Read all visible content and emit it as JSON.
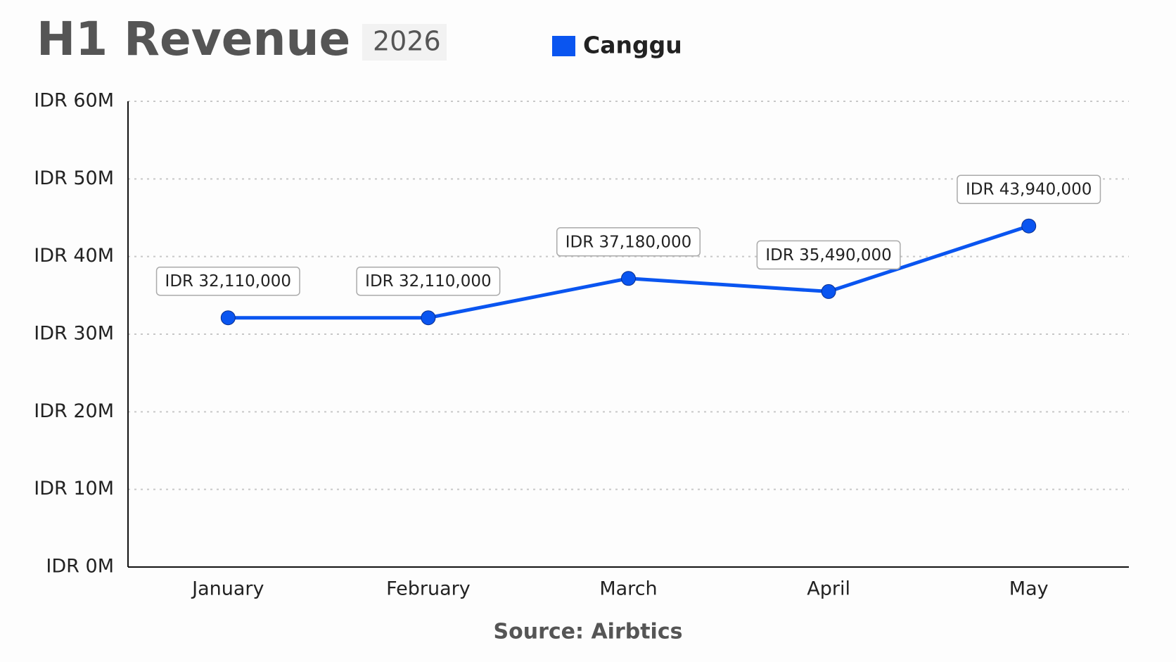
{
  "chart_data": {
    "type": "line",
    "title": "H1 Revenue",
    "subtitle": "2026",
    "source": "Source: Airbtics",
    "categories": [
      "January",
      "February",
      "March",
      "April",
      "May"
    ],
    "series": [
      {
        "name": "Canggu",
        "color": "#0a55f0",
        "values": [
          32110000,
          32110000,
          37180000,
          35490000,
          43940000
        ],
        "value_labels": [
          "IDR 32,110,000",
          "IDR 32,110,000",
          "IDR 37,180,000",
          "IDR 35,490,000",
          "IDR 43,940,000"
        ]
      }
    ],
    "ylim": [
      0,
      60000000
    ],
    "yticks": [
      {
        "value": 0,
        "label": "IDR 0M"
      },
      {
        "value": 10000000,
        "label": "IDR 10M"
      },
      {
        "value": 20000000,
        "label": "IDR 20M"
      },
      {
        "value": 30000000,
        "label": "IDR 30M"
      },
      {
        "value": 40000000,
        "label": "IDR 40M"
      },
      {
        "value": 50000000,
        "label": "IDR 50M"
      },
      {
        "value": 60000000,
        "label": "IDR 60M"
      }
    ],
    "grid": true
  }
}
